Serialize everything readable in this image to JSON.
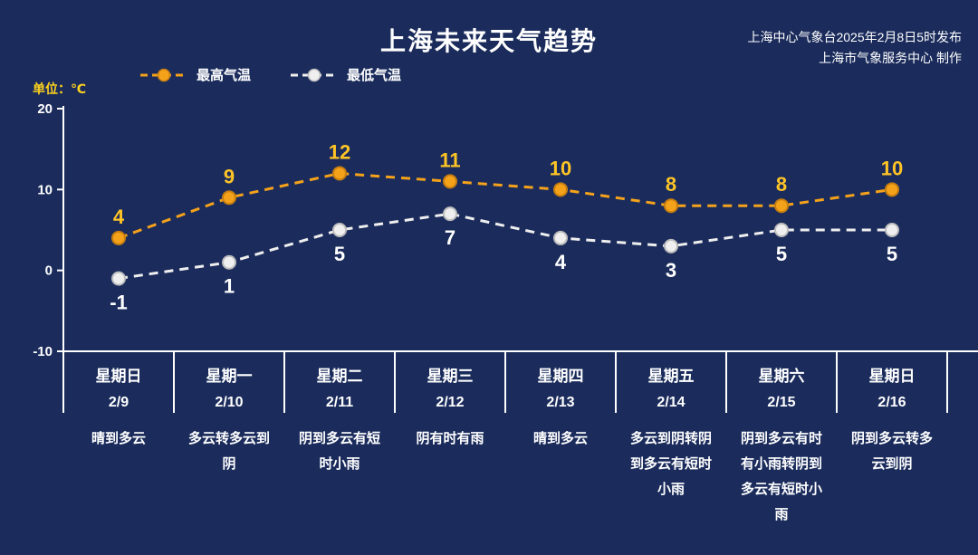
{
  "page": {
    "title": "上海未来天气趋势",
    "publisher_line1": "上海中心气象台2025年2月8日5时发布",
    "publisher_line2": "上海市气象服务中心 制作",
    "unit_label": "单位：℃"
  },
  "colors": {
    "background": "#1b2c5c",
    "axis": "#ffffff",
    "title": "#ffffff",
    "unit_label": "#ffd21e",
    "max_series": "#f5a21b",
    "max_value_label": "#ffc425",
    "min_series": "#efefef",
    "min_value_label": "#ffffff"
  },
  "legend": [
    {
      "label": "最高气温",
      "color": "#f5a21b",
      "marker_stroke": "#c87f0f"
    },
    {
      "label": "最低气温",
      "color": "#efefef",
      "marker_stroke": "#bdbdbd"
    }
  ],
  "chart_data": {
    "type": "line",
    "title": "上海未来天气趋势",
    "unit": "℃",
    "ylim": [
      -10,
      20
    ],
    "yticks": [
      20,
      10,
      0,
      -10
    ],
    "legend_position": "top",
    "grid": false,
    "line_style": "dashed",
    "categories": [
      {
        "day": "星期日",
        "date": "2/9",
        "weather": "晴到多云"
      },
      {
        "day": "星期一",
        "date": "2/10",
        "weather": "多云转多云到阴"
      },
      {
        "day": "星期二",
        "date": "2/11",
        "weather": "阴到多云有短时小雨"
      },
      {
        "day": "星期三",
        "date": "2/12",
        "weather": "阴有时有雨"
      },
      {
        "day": "星期四",
        "date": "2/13",
        "weather": "晴到多云"
      },
      {
        "day": "星期五",
        "date": "2/14",
        "weather": "多云到阴转阴到多云有短时小雨"
      },
      {
        "day": "星期六",
        "date": "2/15",
        "weather": "阴到多云有时有小雨转阴到多云有短时小雨"
      },
      {
        "day": "星期日",
        "date": "2/16",
        "weather": "阴到多云转多云到阴"
      }
    ],
    "series": [
      {
        "name": "最高气温",
        "color": "#f5a21b",
        "label_color": "#ffc425",
        "marker_stroke": "#c87f0f",
        "values": [
          4,
          9,
          12,
          11,
          10,
          8,
          8,
          10
        ]
      },
      {
        "name": "最低气温",
        "color": "#efefef",
        "label_color": "#ffffff",
        "marker_stroke": "#bdbdbd",
        "values": [
          -1,
          1,
          5,
          7,
          4,
          3,
          5,
          5
        ]
      }
    ]
  }
}
